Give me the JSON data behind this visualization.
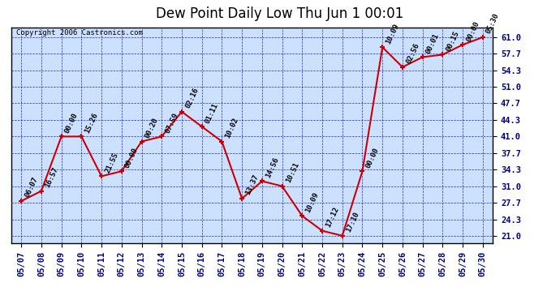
{
  "title": "Dew Point Daily Low Thu Jun 1 00:01",
  "copyright": "Copyright 2006 Castronics.com",
  "background_color": "#ffffff",
  "plot_bg_color": "#cce0ff",
  "grid_color": "#0000bb",
  "line_color": "#cc0000",
  "marker_color": "#cc0000",
  "x_labels": [
    "05/07",
    "05/08",
    "05/09",
    "05/10",
    "05/11",
    "05/12",
    "05/13",
    "05/14",
    "05/15",
    "05/16",
    "05/17",
    "05/18",
    "05/19",
    "05/20",
    "05/21",
    "05/22",
    "05/23",
    "05/24",
    "05/25",
    "05/26",
    "05/27",
    "05/28",
    "05/29",
    "05/30"
  ],
  "y_values": [
    28.0,
    30.0,
    41.0,
    41.0,
    33.0,
    34.0,
    40.0,
    41.0,
    46.0,
    43.0,
    40.0,
    28.5,
    32.0,
    31.0,
    25.0,
    22.0,
    21.0,
    34.0,
    59.0,
    55.0,
    57.0,
    57.5,
    59.5,
    61.0
  ],
  "point_labels": [
    "06:07",
    "16:57",
    "00:00",
    "15:26",
    "21:55",
    "00:00",
    "00:20",
    "07:59",
    "02:16",
    "01:11",
    "10:02",
    "13:37",
    "14:56",
    "10:51",
    "10:09",
    "17:12",
    "17:10",
    "00:00",
    "10:09",
    "02:56",
    "00:01",
    "00:15",
    "00:00",
    "05:30"
  ],
  "y_ticks": [
    21.0,
    24.3,
    27.7,
    31.0,
    34.3,
    37.7,
    41.0,
    44.3,
    47.7,
    51.0,
    54.3,
    57.7,
    61.0
  ],
  "ylim": [
    19.5,
    63.0
  ],
  "title_fontsize": 12,
  "label_fontsize": 6.5,
  "tick_fontsize": 7.5,
  "copyright_fontsize": 6.5
}
